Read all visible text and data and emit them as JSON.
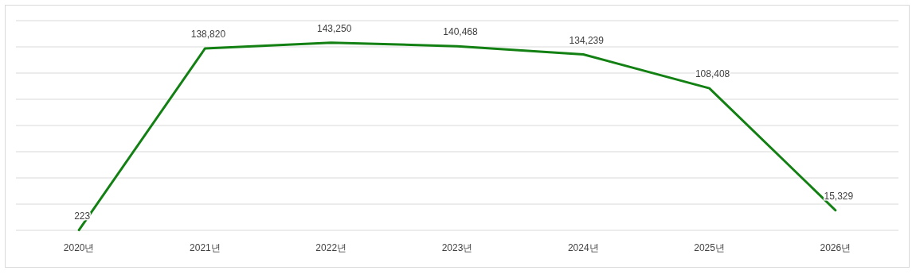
{
  "chart_data": {
    "type": "line",
    "categories": [
      "2020년",
      "2021년",
      "2022년",
      "2023년",
      "2024년",
      "2025년",
      "2026년"
    ],
    "series": [
      {
        "color": "#138013",
        "values": [
          223,
          138820,
          143250,
          140468,
          134239,
          108408,
          15329
        ],
        "value_labels": [
          "223",
          "138,820",
          "143,250",
          "140,468",
          "134,239",
          "108,408",
          "15,329"
        ]
      }
    ],
    "ylim": [
      0,
      160000
    ],
    "yticks": [
      {
        "value": 0,
        "label": null
      },
      {
        "value": 20000,
        "label": null
      },
      {
        "value": 40000,
        "label": null
      },
      {
        "value": 60000,
        "label": null
      },
      {
        "value": 80000,
        "label": null
      },
      {
        "value": 100000,
        "label": null
      },
      {
        "value": 120000,
        "label": null
      },
      {
        "value": 140000,
        "label": null
      },
      {
        "value": 160000,
        "label": null
      }
    ],
    "grid": "y",
    "tick_labels": "x"
  }
}
